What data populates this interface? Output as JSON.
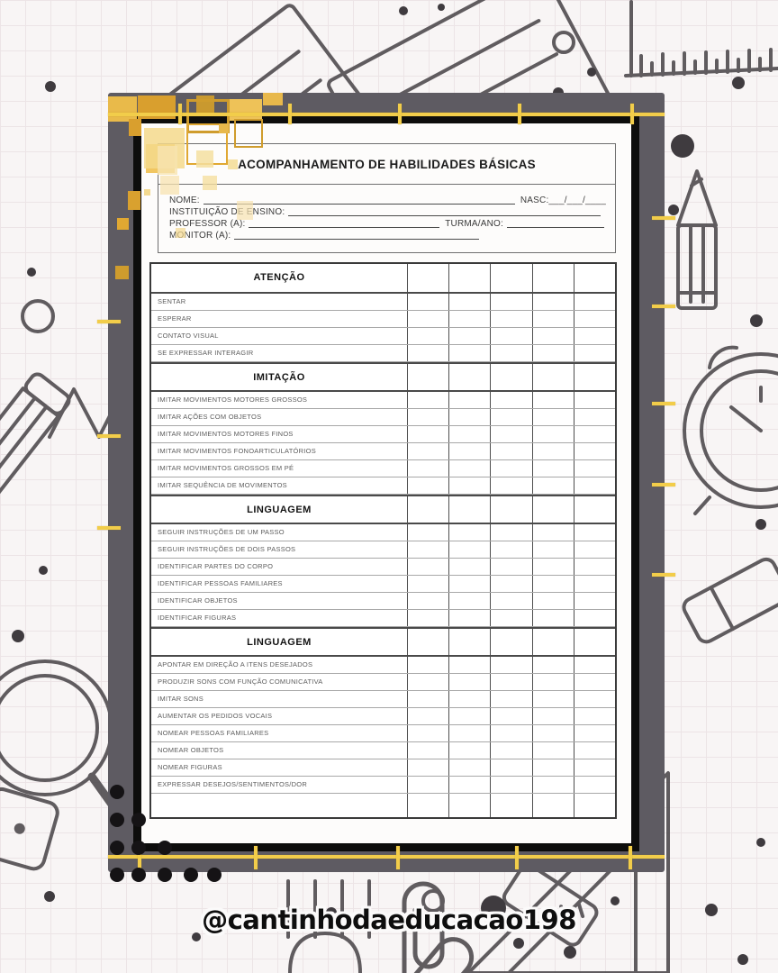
{
  "credit": {
    "handle": "@cantinhodaeducacao198"
  },
  "form": {
    "title": "ACOMPANHAMENTO DE HABILIDADES BÁSICAS",
    "header": {
      "nome_label": "NOME:",
      "nasc_label": "NASC:",
      "nasc_value": "___/___/____",
      "instituicao_label": "INSTITUIÇÃO DE ENSINO:",
      "professor_label": "PROFESSOR (A):",
      "turma_label": "TURMA/ANO:",
      "monitor_label": "MONITOR (A):"
    },
    "table": {
      "check_columns": 5,
      "blank_footer_row": true,
      "sections": [
        {
          "title": "ATENÇÃO",
          "items": [
            "SENTAR",
            "ESPERAR",
            "CONTATO VISUAL",
            "SE EXPRESSAR INTERAGIR"
          ]
        },
        {
          "title": "IMITAÇÃO",
          "items": [
            "IMITAR MOVIMENTOS MOTORES GROSSOS",
            "IMITAR AÇÕES COM OBJETOS",
            "IMITAR MOVIMENTOS MOTORES FINOS",
            "IMITAR MOVIMENTOS FONOARTICULATÓRIOS",
            "IMITAR MOVIMENTOS GROSSOS EM PÉ",
            "IMITAR SEQUÊNCIA DE MOVIMENTOS"
          ]
        },
        {
          "title": "LINGUAGEM",
          "items": [
            "SEGUIR INSTRUÇÕES DE UM PASSO",
            "SEGUIR INSTRUÇÕES DE DOIS PASSOS",
            "IDENTIFICAR PARTES DO CORPO",
            "IDENTIFICAR PESSOAS FAMILIARES",
            "IDENTIFICAR OBJETOS",
            "IDENTIFICAR FIGURAS"
          ]
        },
        {
          "title": "LINGUAGEM",
          "items": [
            "APONTAR EM DIREÇÃO A ITENS DESEJADOS",
            "PRODUZIR SONS COM FUNÇÃO COMUNICATIVA",
            "IMITAR SONS",
            "AUMENTAR OS PEDIDOS VOCAIS",
            "NOMEAR PESSOAS FAMILIARES",
            "NOMEAR OBJETOS",
            "NOMEAR FIGURAS",
            "EXPRESSAR DESEJOS/SENTIMENTOS/DOR"
          ]
        }
      ]
    }
  },
  "colors": {
    "panel": "#5e5b62",
    "tape": "#f2cd4a",
    "frame": "#0d0d0c",
    "paper": "#fdfcfb",
    "doodle": "#4b474b",
    "gold": "#e0a832"
  }
}
